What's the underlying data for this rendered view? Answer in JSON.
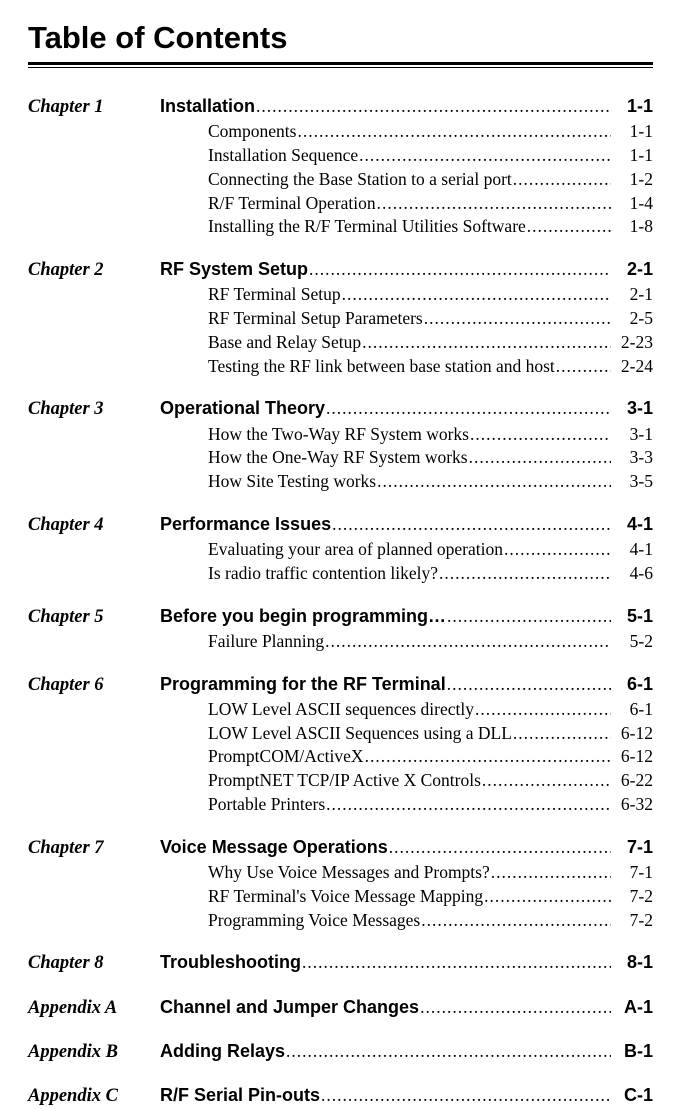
{
  "title": "Table of Contents",
  "chapters": [
    {
      "label": "Chapter 1",
      "title": "Installation",
      "page": "1-1",
      "subs": [
        {
          "title": "Components",
          "page": "1-1"
        },
        {
          "title": "Installation Sequence",
          "page": "1-1"
        },
        {
          "title": "Connecting the Base Station to a serial port",
          "page": "1-2"
        },
        {
          "title": "R/F Terminal Operation",
          "page": "1-4"
        },
        {
          "title": "Installing the R/F Terminal Utilities Software",
          "page": "1-8"
        }
      ]
    },
    {
      "label": "Chapter 2",
      "title": "RF System Setup",
      "page": "2-1",
      "subs": [
        {
          "title": "RF Terminal Setup",
          "page": "2-1"
        },
        {
          "title": "RF Terminal Setup Parameters",
          "page": "2-5"
        },
        {
          "title": "Base and Relay Setup",
          "page": "2-23"
        },
        {
          "title": "Testing the RF link between base station and host",
          "page": "2-24"
        }
      ]
    },
    {
      "label": "Chapter 3",
      "title": "Operational Theory",
      "page": "3-1",
      "subs": [
        {
          "title": "How the Two-Way RF System works",
          "page": "3-1"
        },
        {
          "title": "How the One-Way RF System works",
          "page": "3-3"
        },
        {
          "title": "How Site Testing works",
          "page": "3-5"
        }
      ]
    },
    {
      "label": "Chapter 4",
      "title": "Performance Issues",
      "page": "4-1",
      "subs": [
        {
          "title": "Evaluating your area of planned operation",
          "page": "4-1"
        },
        {
          "title": "Is radio traffic contention likely?",
          "page": "4-6"
        }
      ]
    },
    {
      "label": "Chapter 5",
      "title": "Before you begin programming…",
      "page": "5-1",
      "subs": [
        {
          "title": "Failure Planning",
          "page": "5-2"
        }
      ]
    },
    {
      "label": "Chapter 6",
      "title": "Programming for the RF Terminal",
      "page": "6-1",
      "subs": [
        {
          "title": "LOW Level ASCII sequences directly",
          "page": "6-1"
        },
        {
          "title": "LOW Level ASCII Sequences using a DLL",
          "page": "6-12"
        },
        {
          "title": "PromptCOM/ActiveX",
          "page": "6-12"
        },
        {
          "title": "PromptNET TCP/IP Active X Controls",
          "page": "6-22"
        },
        {
          "title": "Portable Printers",
          "page": "6-32"
        }
      ]
    },
    {
      "label": "Chapter 7",
      "title": "Voice Message Operations",
      "page": "7-1",
      "subs": [
        {
          "title": "Why Use Voice Messages and Prompts?",
          "page": "7-1"
        },
        {
          "title": "RF Terminal's Voice Message Mapping",
          "page": "7-2"
        },
        {
          "title": "Programming Voice Messages",
          "page": "7-2"
        }
      ]
    },
    {
      "label": "Chapter 8",
      "title": "Troubleshooting",
      "page": "8-1",
      "subs": []
    },
    {
      "label": "Appendix A",
      "title": "Channel and Jumper Changes",
      "page": "A-1",
      "subs": []
    },
    {
      "label": "Appendix B",
      "title": "Adding Relays",
      "page": "B-1",
      "subs": []
    },
    {
      "label": "Appendix C",
      "title": "R/F Serial Pin-outs",
      "page": "C-1",
      "subs": []
    }
  ]
}
